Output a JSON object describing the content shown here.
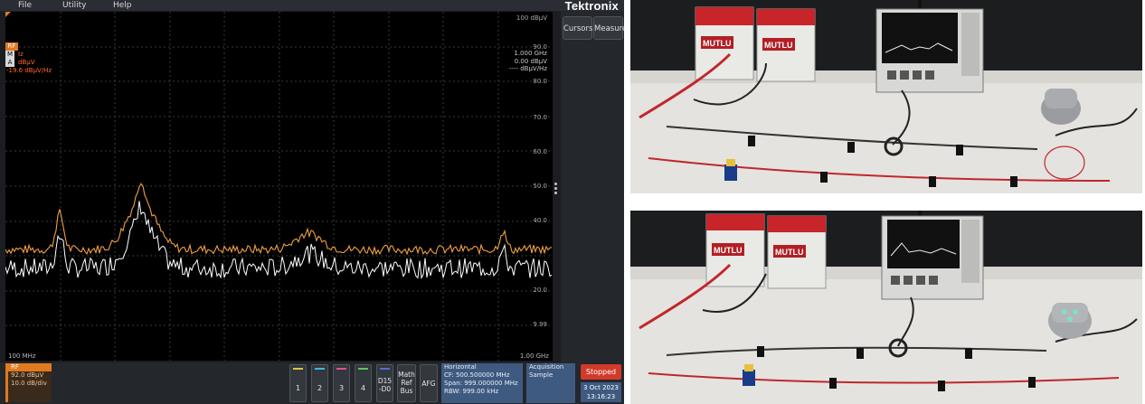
{
  "menu": {
    "file": "File",
    "utility": "Utility",
    "help": "Help"
  },
  "brand": "Tektronix",
  "side": {
    "cursors": "Cursors",
    "measure": "Measure"
  },
  "screen": {
    "top_ref": "100 dBµV",
    "y_ticks": [
      "90.0",
      "80.0",
      "70.0",
      "60.0",
      "50.0",
      "40.0",
      "20.0",
      "9.99"
    ],
    "x_start": "100 MHz",
    "x_end": "1.00 GHz",
    "rf_badge": "RF",
    "tag_m": "M",
    "tag_a": "A",
    "m_text": "Iz",
    "a_text": "dBµV",
    "density": "-19.6 dBµV/Hz",
    "marker_freq": "1.000 GHz",
    "marker_level": "0.00 dBµV",
    "marker_density": "---- dBµV/Hz"
  },
  "rf_box": {
    "header": "RF",
    "ref_level": "92.0 dBµV",
    "scale": "10.0 dB/div"
  },
  "channels": [
    {
      "label": "1",
      "color": "#d8c84a"
    },
    {
      "label": "2",
      "color": "#3fb6e0"
    },
    {
      "label": "3",
      "color": "#e0508c"
    },
    {
      "label": "4",
      "color": "#5ec45a"
    }
  ],
  "buttons": {
    "digital_line1": "D15",
    "digital_line2": "-D0",
    "math_line1": "Math",
    "math_line2": "Ref",
    "math_line3": "Bus",
    "afg": "AFG"
  },
  "horizontal": {
    "title": "Horizontal",
    "cf": "CF:   500.500000 MHz",
    "span": "Span: 999.000000 MHz",
    "rbw": "RBW: 999.00 kHz"
  },
  "acquisition": {
    "title": "Acquisition",
    "mode": "Sample"
  },
  "status": "Stopped",
  "date": "3 Oct 2023",
  "time": "13:16:23",
  "photo_labels": {
    "battery": "MUTLU"
  }
}
